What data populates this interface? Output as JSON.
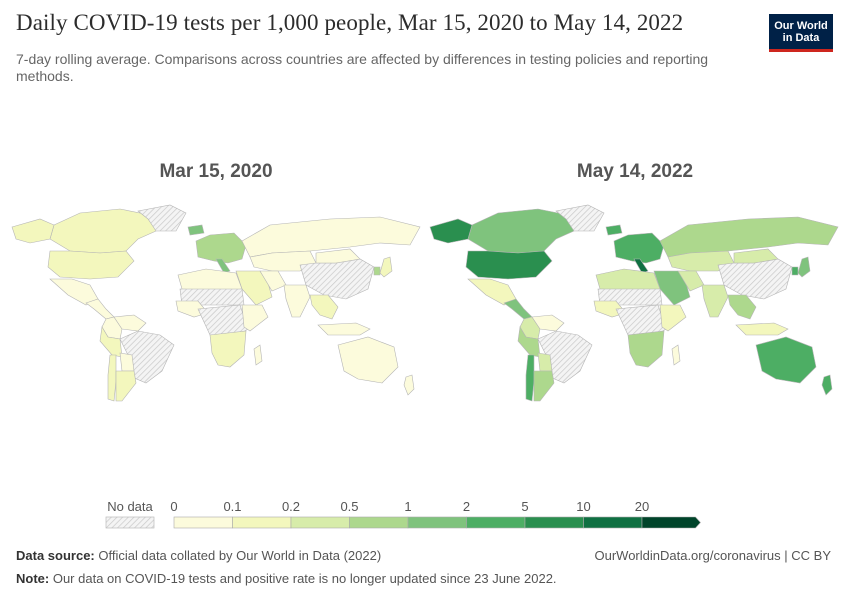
{
  "header": {
    "title": "Daily COVID-19 tests per 1,000 people, Mar 15, 2020 to May 14, 2022",
    "subtitle": "7-day rolling average. Comparisons across countries are affected by differences in testing policies and reporting methods."
  },
  "logo": {
    "line1": "Our World",
    "line2": "in Data"
  },
  "chart_data": {
    "type": "choropleth",
    "metric": "Daily COVID-19 tests per 1,000 people (7-day rolling average)",
    "maps": [
      {
        "title": "Mar 15, 2020",
        "regions": [
          {
            "name": "Canada",
            "bin": 1
          },
          {
            "name": "United States",
            "bin": 1
          },
          {
            "name": "Alaska",
            "bin": 1
          },
          {
            "name": "Mexico",
            "bin": 0
          },
          {
            "name": "Central America",
            "bin": 0
          },
          {
            "name": "Colombia",
            "bin": 0
          },
          {
            "name": "Venezuela",
            "bin": 0
          },
          {
            "name": "Brazil",
            "bin": -1
          },
          {
            "name": "Peru",
            "bin": 1
          },
          {
            "name": "Bolivia",
            "bin": 0
          },
          {
            "name": "Chile",
            "bin": 1
          },
          {
            "name": "Argentina",
            "bin": 1
          },
          {
            "name": "Greenland",
            "bin": -1
          },
          {
            "name": "Iceland",
            "bin": 4
          },
          {
            "name": "Europe",
            "bin": 3
          },
          {
            "name": "Italy",
            "bin": 4
          },
          {
            "name": "Russia",
            "bin": 0
          },
          {
            "name": "Central Asia",
            "bin": 0
          },
          {
            "name": "China",
            "bin": -1
          },
          {
            "name": "Mongolia",
            "bin": 0
          },
          {
            "name": "South Korea",
            "bin": 3
          },
          {
            "name": "Japan",
            "bin": 1
          },
          {
            "name": "Middle East",
            "bin": 1
          },
          {
            "name": "Iran",
            "bin": 0
          },
          {
            "name": "India",
            "bin": 0
          },
          {
            "name": "Southeast Asia",
            "bin": 1
          },
          {
            "name": "Indonesia",
            "bin": 0
          },
          {
            "name": "North Africa",
            "bin": 0
          },
          {
            "name": "Sahel",
            "bin": -1
          },
          {
            "name": "West Africa",
            "bin": 0
          },
          {
            "name": "Central Africa",
            "bin": -1
          },
          {
            "name": "East Africa",
            "bin": 0
          },
          {
            "name": "Southern Africa",
            "bin": 1
          },
          {
            "name": "Madagascar",
            "bin": 0
          },
          {
            "name": "Australia",
            "bin": 0
          },
          {
            "name": "New Zealand",
            "bin": 0
          }
        ]
      },
      {
        "title": "May 14, 2022",
        "regions": [
          {
            "name": "Canada",
            "bin": 4
          },
          {
            "name": "United States",
            "bin": 6
          },
          {
            "name": "Alaska",
            "bin": 6
          },
          {
            "name": "Mexico",
            "bin": 1
          },
          {
            "name": "Central America",
            "bin": 4
          },
          {
            "name": "Colombia",
            "bin": 2
          },
          {
            "name": "Venezuela",
            "bin": 0
          },
          {
            "name": "Brazil",
            "bin": -1
          },
          {
            "name": "Peru",
            "bin": 3
          },
          {
            "name": "Bolivia",
            "bin": 2
          },
          {
            "name": "Chile",
            "bin": 5
          },
          {
            "name": "Argentina",
            "bin": 3
          },
          {
            "name": "Greenland",
            "bin": -1
          },
          {
            "name": "Iceland",
            "bin": 5
          },
          {
            "name": "Europe",
            "bin": 5
          },
          {
            "name": "Italy",
            "bin": 7
          },
          {
            "name": "Russia",
            "bin": 3
          },
          {
            "name": "Central Asia",
            "bin": 2
          },
          {
            "name": "China",
            "bin": -1
          },
          {
            "name": "Mongolia",
            "bin": 2
          },
          {
            "name": "South Korea",
            "bin": 5
          },
          {
            "name": "Japan",
            "bin": 4
          },
          {
            "name": "Middle East",
            "bin": 4
          },
          {
            "name": "Iran",
            "bin": 2
          },
          {
            "name": "India",
            "bin": 2
          },
          {
            "name": "Southeast Asia",
            "bin": 3
          },
          {
            "name": "Indonesia",
            "bin": 1
          },
          {
            "name": "North Africa",
            "bin": 2
          },
          {
            "name": "Sahel",
            "bin": -1
          },
          {
            "name": "West Africa",
            "bin": 1
          },
          {
            "name": "Central Africa",
            "bin": -1
          },
          {
            "name": "East Africa",
            "bin": 1
          },
          {
            "name": "Southern Africa",
            "bin": 3
          },
          {
            "name": "Madagascar",
            "bin": 0
          },
          {
            "name": "Australia",
            "bin": 5
          },
          {
            "name": "New Zealand",
            "bin": 5
          }
        ]
      }
    ],
    "legend": {
      "no_data_label": "No data",
      "thresholds": [
        "0",
        "0.1",
        "0.2",
        "0.5",
        "1",
        "2",
        "5",
        "10",
        "20"
      ],
      "colors": [
        "#fcfbdc",
        "#f3f7bd",
        "#d7ecaa",
        "#add88d",
        "#7fc37d",
        "#4dae64",
        "#2a8f4f",
        "#0f7042",
        "#00442a"
      ],
      "no_data_color": "#e8e8e8"
    }
  },
  "footer": {
    "source_label": "Data source:",
    "source_text": "Official data collated by Our World in Data (2022)",
    "credit": "OurWorldinData.org/coronavirus | CC BY",
    "note_label": "Note:",
    "note_text": "Our data on COVID-19 tests and positive rate is no longer updated since 23 June 2022."
  }
}
